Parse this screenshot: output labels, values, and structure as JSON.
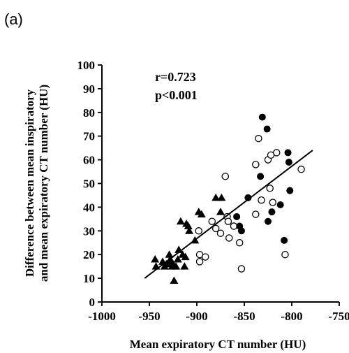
{
  "panel_label": "(a)",
  "chart_data": {
    "type": "scatter",
    "xlabel": "Mean expiratory CT number (HU)",
    "ylabel_lines": [
      "Difference between mean inspiratory",
      "and mean expiratory CT number (HU)"
    ],
    "xlim": [
      -1000,
      -750
    ],
    "ylim": [
      0,
      100
    ],
    "x_ticks": [
      -1000,
      -950,
      -900,
      -850,
      -800,
      -750
    ],
    "y_ticks": [
      0,
      10,
      20,
      30,
      40,
      50,
      60,
      70,
      80,
      90,
      100
    ],
    "annotations": [
      "r=0.723",
      "p<0.001"
    ],
    "grid": false,
    "legend": "none",
    "series": [
      {
        "marker": "triangle-filled",
        "points": [
          [
            -944,
            18
          ],
          [
            -943,
            15
          ],
          [
            -936,
            17
          ],
          [
            -934,
            15
          ],
          [
            -932,
            16
          ],
          [
            -931,
            16
          ],
          [
            -929,
            20
          ],
          [
            -928,
            18
          ],
          [
            -927,
            17
          ],
          [
            -926,
            15
          ],
          [
            -925,
            16
          ],
          [
            -924,
            9
          ],
          [
            -922,
            15
          ],
          [
            -920,
            18
          ],
          [
            -919,
            22
          ],
          [
            -917,
            34
          ],
          [
            -915,
            20
          ],
          [
            -913,
            15
          ],
          [
            -912,
            19
          ],
          [
            -911,
            33
          ],
          [
            -909,
            32
          ],
          [
            -908,
            30
          ],
          [
            -902,
            26
          ],
          [
            -898,
            38
          ],
          [
            -895,
            37
          ],
          [
            -880,
            44
          ],
          [
            -874,
            44
          ],
          [
            -875,
            38
          ]
        ]
      },
      {
        "marker": "circle-open",
        "points": [
          [
            -898,
            30
          ],
          [
            -897,
            17
          ],
          [
            -897,
            20
          ],
          [
            -891,
            19
          ],
          [
            -884,
            34
          ],
          [
            -880,
            31
          ],
          [
            -875,
            29
          ],
          [
            -870,
            53
          ],
          [
            -868,
            36
          ],
          [
            -867,
            34
          ],
          [
            -866,
            27
          ],
          [
            -861,
            32
          ],
          [
            -855,
            25
          ],
          [
            -853,
            14
          ],
          [
            -838,
            37
          ],
          [
            -838,
            58
          ],
          [
            -835,
            69
          ],
          [
            -832,
            43
          ],
          [
            -825,
            60
          ],
          [
            -823,
            48
          ],
          [
            -822,
            62
          ],
          [
            -820,
            42
          ],
          [
            -816,
            63
          ],
          [
            -807,
            20
          ],
          [
            -790,
            56
          ]
        ]
      },
      {
        "marker": "circle-filled",
        "points": [
          [
            -858,
            36
          ],
          [
            -855,
            32
          ],
          [
            -853,
            30
          ],
          [
            -846,
            44
          ],
          [
            -833,
            53
          ],
          [
            -831,
            78
          ],
          [
            -826,
            73
          ],
          [
            -825,
            34
          ],
          [
            -821,
            38
          ],
          [
            -812,
            41
          ],
          [
            -808,
            26
          ],
          [
            -804,
            63
          ],
          [
            -803,
            59
          ],
          [
            -802,
            47
          ]
        ]
      }
    ],
    "regression_line": {
      "x": [
        -955,
        -778
      ],
      "y": [
        10,
        64
      ]
    }
  }
}
